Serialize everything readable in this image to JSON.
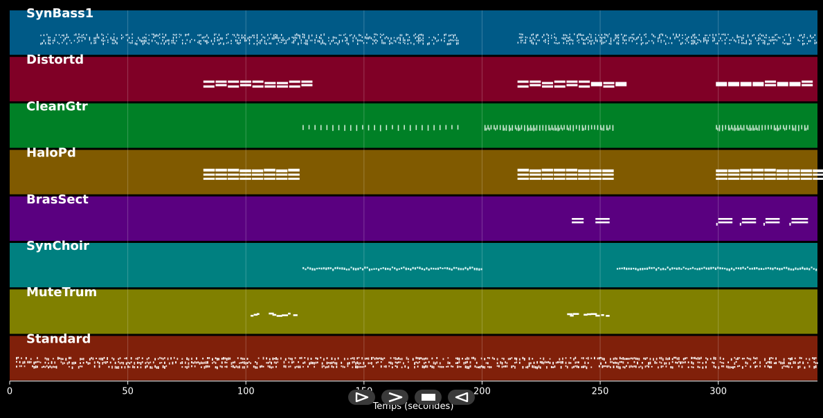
{
  "chart_data": {
    "type": "timeline",
    "xlabel": "Temps (secondes)",
    "xlim": [
      0,
      342
    ],
    "xticks": [
      0,
      50,
      100,
      150,
      200,
      250,
      300
    ],
    "grid": true,
    "tracks": [
      {
        "name": "SynBass1",
        "color": "#005a87",
        "style": "dense",
        "segments": [
          [
            13,
            190
          ],
          [
            215,
            342
          ]
        ]
      },
      {
        "name": "Distortd",
        "color": "#800026",
        "style": "bars",
        "segments": [
          [
            82,
            129
          ],
          [
            215,
            262
          ],
          [
            299,
            342
          ]
        ]
      },
      {
        "name": "CleanGtr",
        "color": "#008026",
        "style": "ticks",
        "segments": [
          [
            124,
            190
          ],
          [
            201,
            256
          ],
          [
            299,
            338
          ]
        ]
      },
      {
        "name": "HaloPd",
        "color": "#805a00",
        "style": "pad",
        "segments": [
          [
            82,
            124
          ],
          [
            215,
            256
          ],
          [
            299,
            342
          ]
        ]
      },
      {
        "name": "BrasSect",
        "color": "#5a0080",
        "style": "brass",
        "segments": [
          [
            238,
            243
          ],
          [
            248,
            254
          ],
          [
            300,
            306
          ],
          [
            310,
            316
          ],
          [
            320,
            326
          ],
          [
            331,
            338
          ]
        ]
      },
      {
        "name": "SynChoir",
        "color": "#008080",
        "style": "choir",
        "segments": [
          [
            124,
            200
          ],
          [
            257,
            342
          ]
        ]
      },
      {
        "name": "MuteTrum",
        "color": "#808000",
        "style": "sparse",
        "segments": [
          [
            102,
            124
          ],
          [
            236,
            256
          ]
        ]
      },
      {
        "name": "Standard",
        "color": "#80200a",
        "style": "drums",
        "segments": [
          [
            2,
            342
          ]
        ]
      }
    ]
  },
  "transport": [
    {
      "name": "play-icon"
    },
    {
      "name": "forward-icon"
    },
    {
      "name": "stop-icon"
    },
    {
      "name": "rewind-icon"
    }
  ]
}
